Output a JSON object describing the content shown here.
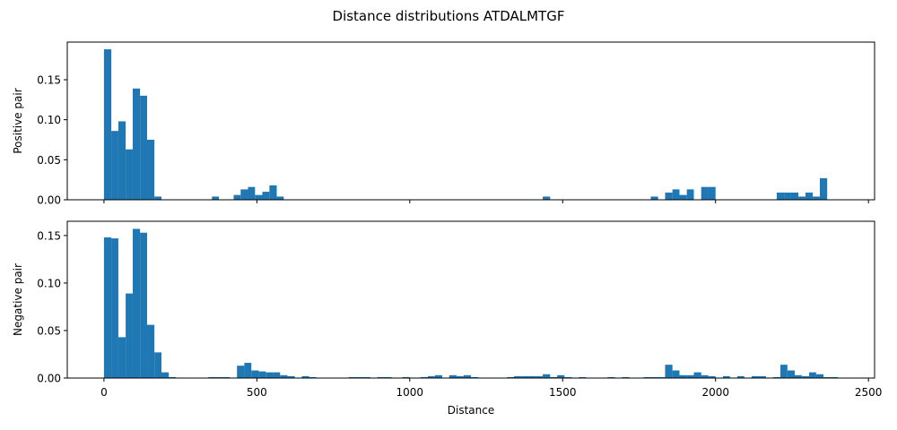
{
  "figure": {
    "title": "Distance distributions ATDALMTGF",
    "bar_color": "#1f77b4"
  },
  "chart_data": [
    {
      "type": "bar",
      "ylabel": "Positive pair",
      "xlabel": "",
      "xlim": [
        -120,
        2520
      ],
      "ylim": [
        0,
        0.197
      ],
      "xticks": [
        0,
        500,
        1000,
        1500,
        2000,
        2500
      ],
      "show_xtick_labels": false,
      "yticks": [
        0.0,
        0.05,
        0.1,
        0.15
      ],
      "ytick_labels": [
        "0.00",
        "0.05",
        "0.10",
        "0.15"
      ],
      "bins": [
        [
          0,
          24,
          0.188
        ],
        [
          24,
          47,
          0.086
        ],
        [
          47,
          71,
          0.098
        ],
        [
          71,
          94,
          0.063
        ],
        [
          94,
          118,
          0.139
        ],
        [
          118,
          141,
          0.13
        ],
        [
          141,
          165,
          0.075
        ],
        [
          165,
          188,
          0.004
        ],
        [
          353,
          376,
          0.004
        ],
        [
          424,
          447,
          0.006
        ],
        [
          447,
          471,
          0.013
        ],
        [
          471,
          494,
          0.016
        ],
        [
          494,
          518,
          0.006
        ],
        [
          518,
          541,
          0.01
        ],
        [
          541,
          565,
          0.018
        ],
        [
          565,
          588,
          0.004
        ],
        [
          1435,
          1459,
          0.004
        ],
        [
          1788,
          1812,
          0.004
        ],
        [
          1835,
          1859,
          0.009
        ],
        [
          1859,
          1882,
          0.013
        ],
        [
          1882,
          1906,
          0.006
        ],
        [
          1906,
          1929,
          0.013
        ],
        [
          1953,
          1976,
          0.016
        ],
        [
          1976,
          2000,
          0.016
        ],
        [
          2200,
          2224,
          0.009
        ],
        [
          2224,
          2247,
          0.009
        ],
        [
          2247,
          2271,
          0.009
        ],
        [
          2271,
          2294,
          0.004
        ],
        [
          2294,
          2318,
          0.009
        ],
        [
          2318,
          2341,
          0.004
        ],
        [
          2341,
          2365,
          0.027
        ]
      ]
    },
    {
      "type": "bar",
      "ylabel": "Negative pair",
      "xlabel": "Distance",
      "xlim": [
        -120,
        2520
      ],
      "ylim": [
        0,
        0.165
      ],
      "xticks": [
        0,
        500,
        1000,
        1500,
        2000,
        2500
      ],
      "xtick_labels": [
        "0",
        "500",
        "1000",
        "1500",
        "2000",
        "2500"
      ],
      "show_xtick_labels": true,
      "yticks": [
        0.0,
        0.05,
        0.1,
        0.15
      ],
      "ytick_labels": [
        "0.00",
        "0.05",
        "0.10",
        "0.15"
      ],
      "bins": [
        [
          0,
          24,
          0.148
        ],
        [
          24,
          47,
          0.147
        ],
        [
          47,
          71,
          0.043
        ],
        [
          71,
          94,
          0.089
        ],
        [
          94,
          118,
          0.157
        ],
        [
          118,
          141,
          0.153
        ],
        [
          141,
          165,
          0.056
        ],
        [
          165,
          188,
          0.027
        ],
        [
          188,
          212,
          0.006
        ],
        [
          212,
          235,
          0.001
        ],
        [
          341,
          365,
          0.001
        ],
        [
          365,
          388,
          0.001
        ],
        [
          388,
          412,
          0.001
        ],
        [
          435,
          459,
          0.013
        ],
        [
          459,
          482,
          0.016
        ],
        [
          482,
          506,
          0.008
        ],
        [
          506,
          529,
          0.007
        ],
        [
          529,
          553,
          0.006
        ],
        [
          553,
          576,
          0.006
        ],
        [
          576,
          600,
          0.003
        ],
        [
          600,
          624,
          0.002
        ],
        [
          647,
          671,
          0.002
        ],
        [
          671,
          694,
          0.001
        ],
        [
          800,
          824,
          0.001
        ],
        [
          824,
          847,
          0.001
        ],
        [
          847,
          871,
          0.001
        ],
        [
          894,
          918,
          0.001
        ],
        [
          918,
          941,
          0.001
        ],
        [
          976,
          1000,
          0.001
        ],
        [
          1035,
          1059,
          0.001
        ],
        [
          1059,
          1082,
          0.002
        ],
        [
          1082,
          1106,
          0.003
        ],
        [
          1129,
          1153,
          0.003
        ],
        [
          1153,
          1176,
          0.002
        ],
        [
          1176,
          1200,
          0.003
        ],
        [
          1200,
          1224,
          0.001
        ],
        [
          1318,
          1341,
          0.001
        ],
        [
          1341,
          1365,
          0.002
        ],
        [
          1365,
          1388,
          0.002
        ],
        [
          1388,
          1412,
          0.002
        ],
        [
          1412,
          1435,
          0.002
        ],
        [
          1435,
          1459,
          0.004
        ],
        [
          1459,
          1482,
          0.001
        ],
        [
          1482,
          1506,
          0.003
        ],
        [
          1506,
          1529,
          0.001
        ],
        [
          1553,
          1576,
          0.001
        ],
        [
          1647,
          1671,
          0.001
        ],
        [
          1694,
          1718,
          0.001
        ],
        [
          1765,
          1788,
          0.001
        ],
        [
          1788,
          1812,
          0.001
        ],
        [
          1812,
          1835,
          0.001
        ],
        [
          1835,
          1859,
          0.014
        ],
        [
          1859,
          1882,
          0.008
        ],
        [
          1882,
          1906,
          0.003
        ],
        [
          1906,
          1929,
          0.003
        ],
        [
          1929,
          1953,
          0.006
        ],
        [
          1953,
          1976,
          0.003
        ],
        [
          1976,
          2000,
          0.002
        ],
        [
          2024,
          2047,
          0.002
        ],
        [
          2071,
          2094,
          0.002
        ],
        [
          2118,
          2141,
          0.002
        ],
        [
          2141,
          2165,
          0.002
        ],
        [
          2188,
          2212,
          0.001
        ],
        [
          2212,
          2235,
          0.014
        ],
        [
          2235,
          2259,
          0.008
        ],
        [
          2259,
          2282,
          0.003
        ],
        [
          2282,
          2306,
          0.002
        ],
        [
          2306,
          2329,
          0.006
        ],
        [
          2329,
          2353,
          0.004
        ],
        [
          2353,
          2376,
          0.001
        ],
        [
          2376,
          2400,
          0.001
        ]
      ]
    }
  ]
}
